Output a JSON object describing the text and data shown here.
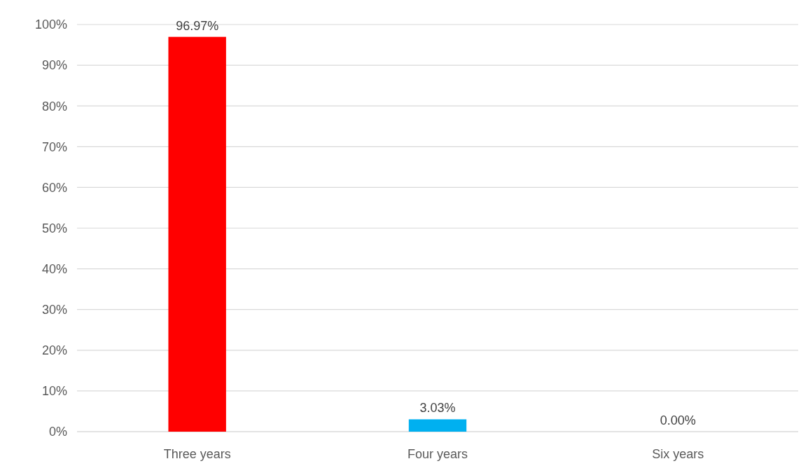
{
  "chart_data": {
    "type": "bar",
    "categories": [
      "Three years",
      "Four years",
      "Six years"
    ],
    "values": [
      96.97,
      3.03,
      0.0
    ],
    "colors": [
      "#ff0000",
      "#00b0f0",
      "#a5a5a5"
    ],
    "value_labels": [
      "96.97%",
      "3.03%",
      "0.00%"
    ],
    "ylim": [
      0,
      100
    ],
    "yticks": [
      {
        "value": 0,
        "label": "0%"
      },
      {
        "value": 10,
        "label": "10%"
      },
      {
        "value": 20,
        "label": "20%"
      },
      {
        "value": 30,
        "label": "30%"
      },
      {
        "value": 40,
        "label": "40%"
      },
      {
        "value": 50,
        "label": "50%"
      },
      {
        "value": 60,
        "label": "60%"
      },
      {
        "value": 70,
        "label": "70%"
      },
      {
        "value": 80,
        "label": "80%"
      },
      {
        "value": 90,
        "label": "90%"
      },
      {
        "value": 100,
        "label": "100%"
      }
    ],
    "grid": "y"
  }
}
